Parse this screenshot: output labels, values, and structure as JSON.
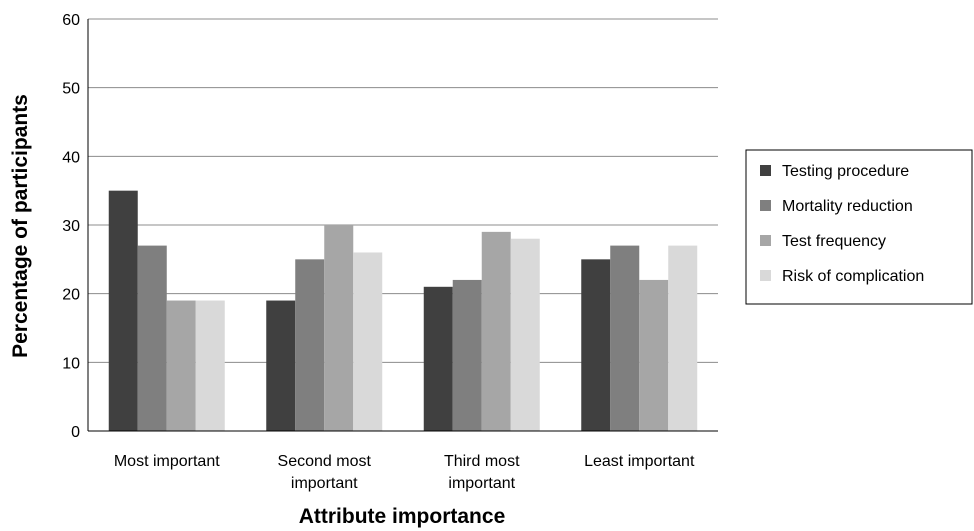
{
  "chart_data": {
    "type": "bar",
    "title": "",
    "xlabel": "Attribute importance",
    "ylabel": "Percentage of participants",
    "ylim": [
      0,
      60
    ],
    "yticks": [
      0,
      10,
      20,
      30,
      40,
      50,
      60
    ],
    "grid": true,
    "legend_position": "right",
    "categories": [
      [
        "Most important"
      ],
      [
        "Second most",
        "important"
      ],
      [
        "Third most",
        "important"
      ],
      [
        "Least important"
      ]
    ],
    "series": [
      {
        "name": "Testing procedure",
        "color": "#404040",
        "values": [
          35,
          19,
          21,
          25
        ]
      },
      {
        "name": "Mortality reduction",
        "color": "#7f7f7f",
        "values": [
          27,
          25,
          22,
          27
        ]
      },
      {
        "name": "Test frequency",
        "color": "#a6a6a6",
        "values": [
          19,
          30,
          29,
          22
        ]
      },
      {
        "name": "Risk of complication",
        "color": "#d9d9d9",
        "values": [
          19,
          26,
          28,
          27
        ]
      }
    ]
  }
}
